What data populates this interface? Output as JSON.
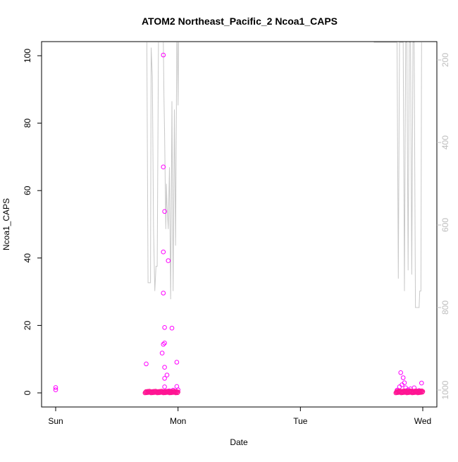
{
  "chart_data": {
    "type": "scatter",
    "title": "ATOM2 Northeast_Pacific_2 Ncoa1_CAPS",
    "xlabel": "Date",
    "ylabel": "Ncoa1_CAPS",
    "x_ticks": [
      "Sun",
      "Mon",
      "Tue",
      "Wed"
    ],
    "x_tick_values": [
      0,
      1,
      2,
      3
    ],
    "ylim": [
      0,
      100
    ],
    "y_ticks": [
      0,
      20,
      40,
      60,
      80,
      100
    ],
    "y2_ticks": [
      200,
      400,
      600,
      800,
      1000
    ],
    "y2lim": [
      150,
      1020
    ],
    "y2_reversed": true,
    "grid": false,
    "point_color": "#ff00ff",
    "dense_point_color": "#ff1493",
    "line_color": "#c8c8c8",
    "points": [
      {
        "x": 0.0,
        "y": 1.6
      },
      {
        "x": 0.0,
        "y": 0.9
      },
      {
        "x": 0.74,
        "y": 8.6
      },
      {
        "x": 0.88,
        "y": 100.2
      },
      {
        "x": 0.88,
        "y": 67.0
      },
      {
        "x": 0.89,
        "y": 53.8
      },
      {
        "x": 0.88,
        "y": 41.8
      },
      {
        "x": 0.92,
        "y": 39.2
      },
      {
        "x": 0.88,
        "y": 29.6
      },
      {
        "x": 0.89,
        "y": 19.4
      },
      {
        "x": 0.95,
        "y": 19.2
      },
      {
        "x": 0.89,
        "y": 14.8
      },
      {
        "x": 0.88,
        "y": 14.4
      },
      {
        "x": 0.87,
        "y": 11.8
      },
      {
        "x": 0.89,
        "y": 7.6
      },
      {
        "x": 0.99,
        "y": 9.1
      },
      {
        "x": 0.91,
        "y": 5.3
      },
      {
        "x": 0.89,
        "y": 4.3
      },
      {
        "x": 0.89,
        "y": 1.8
      },
      {
        "x": 0.99,
        "y": 1.9
      },
      {
        "x": 1.0,
        "y": 0.9
      },
      {
        "x": 0.96,
        "y": 0.8
      },
      {
        "x": 0.93,
        "y": 0.6
      },
      {
        "x": 2.79,
        "y": 0.8
      },
      {
        "x": 2.81,
        "y": 1.8
      },
      {
        "x": 2.82,
        "y": 6.0
      },
      {
        "x": 2.83,
        "y": 2.4
      },
      {
        "x": 2.84,
        "y": 4.5
      },
      {
        "x": 2.85,
        "y": 3.0
      },
      {
        "x": 2.86,
        "y": 1.5
      },
      {
        "x": 2.88,
        "y": 0.9
      },
      {
        "x": 2.9,
        "y": 1.2
      },
      {
        "x": 2.93,
        "y": 1.5
      },
      {
        "x": 2.97,
        "y": 0.7
      },
      {
        "x": 2.99,
        "y": 2.9
      }
    ],
    "dense_ranges": [
      {
        "start": 0.73,
        "end": 1.0,
        "count": 60,
        "ymax": 0.5
      },
      {
        "start": 2.78,
        "end": 3.0,
        "count": 55,
        "ymax": 0.6
      }
    ],
    "line_series": [
      [
        [
          0.745,
          150
        ],
        [
          0.755,
          740
        ],
        [
          0.775,
          740
        ],
        [
          0.78,
          170
        ],
        [
          0.79,
          240
        ],
        [
          0.8,
          610
        ],
        [
          0.81,
          760
        ],
        [
          0.82,
          700
        ],
        [
          0.83,
          700
        ],
        [
          0.84,
          150
        ]
      ],
      [
        [
          0.88,
          150
        ],
        [
          0.885,
          290
        ],
        [
          0.89,
          380
        ],
        [
          0.9,
          610
        ],
        [
          0.905,
          500
        ],
        [
          0.91,
          550
        ],
        [
          0.92,
          610
        ],
        [
          0.93,
          460
        ],
        [
          0.94,
          780
        ],
        [
          0.95,
          300
        ],
        [
          0.96,
          760
        ],
        [
          0.97,
          320
        ],
        [
          0.98,
          650
        ],
        [
          0.99,
          150
        ]
      ],
      [
        [
          0.995,
          150
        ],
        [
          1.0,
          310
        ],
        [
          1.005,
          150
        ]
      ],
      [
        [
          2.79,
          150
        ],
        [
          2.8,
          730
        ],
        [
          2.81,
          150
        ],
        [
          2.84,
          150
        ],
        [
          2.85,
          760
        ],
        [
          2.86,
          150
        ],
        [
          2.87,
          150
        ],
        [
          2.88,
          710
        ],
        [
          2.89,
          150
        ],
        [
          2.9,
          150
        ],
        [
          2.91,
          720
        ],
        [
          2.92,
          150
        ],
        [
          2.93,
          150
        ],
        [
          2.94,
          800
        ],
        [
          2.97,
          800
        ],
        [
          2.975,
          760
        ],
        [
          2.985,
          760
        ],
        [
          2.99,
          150
        ]
      ]
    ],
    "ymax_line": 150
  }
}
